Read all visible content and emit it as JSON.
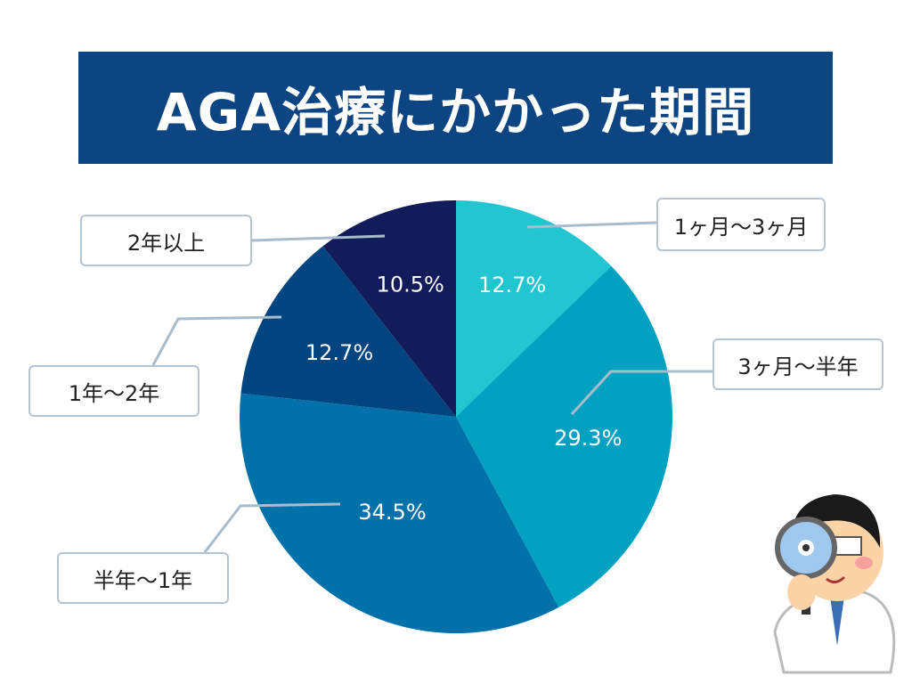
{
  "chart_data": {
    "type": "pie",
    "title": "AGA治療にかかった期間",
    "start": "top",
    "direction": "clockwise",
    "slices": [
      {
        "label": "1ヶ月〜3ヶ月",
        "value": 12.7,
        "text": "12.7%",
        "color": "#22c6d0"
      },
      {
        "label": "3ヶ月〜半年",
        "value": 29.3,
        "text": "29.3%",
        "color": "#00a1c1"
      },
      {
        "label": "半年〜1年",
        "value": 34.5,
        "text": "34.5%",
        "color": "#0071a9"
      },
      {
        "label": "1年〜2年",
        "value": 12.7,
        "text": "12.7%",
        "color": "#00457f"
      },
      {
        "label": "2年以上",
        "value": 10.5,
        "text": "10.5%",
        "color": "#121c5b"
      }
    ]
  },
  "colors": {
    "title_bg": "#0d4582",
    "leader": "#a9bccb"
  },
  "illustration": "doctor-with-magnifying-glass"
}
